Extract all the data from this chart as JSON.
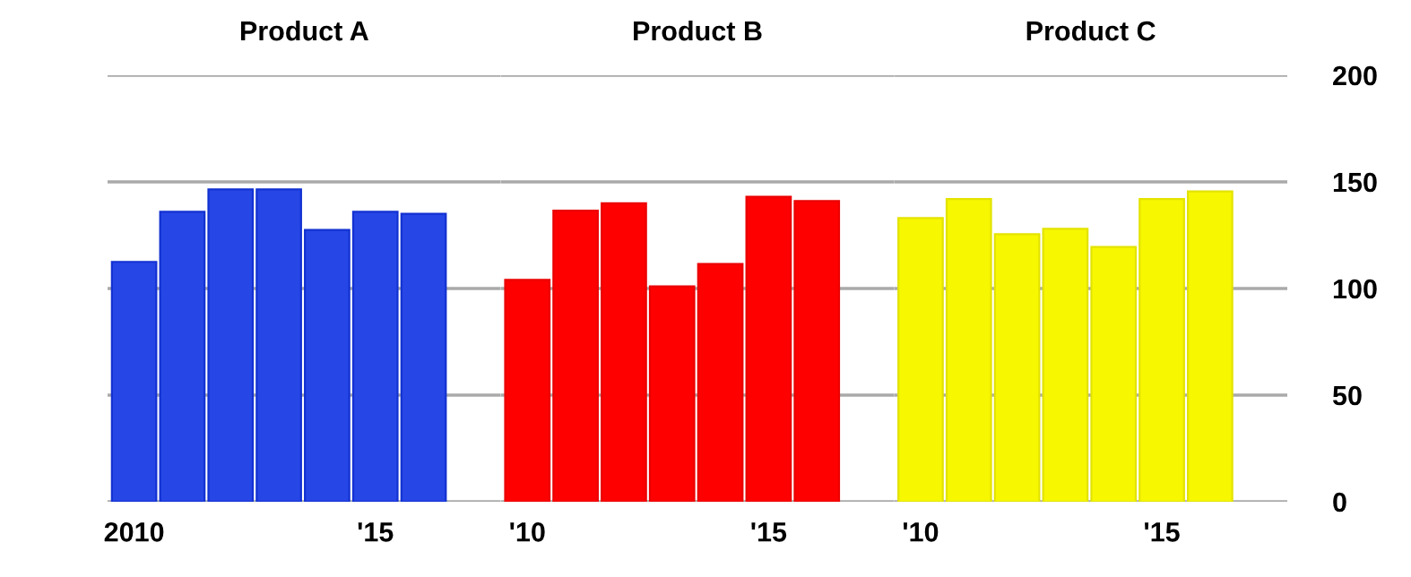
{
  "chart_data": [
    {
      "type": "bar",
      "title": "Product A",
      "categories": [
        "2010",
        null,
        null,
        null,
        null,
        "'15",
        null
      ],
      "values": [
        112.5,
        136,
        146.5,
        146.5,
        127.5,
        136,
        135
      ],
      "color": "#2746e6",
      "ylim": [
        0,
        200
      ],
      "yticks": [
        0,
        50,
        100,
        150,
        200
      ],
      "grid": "y",
      "tick_labels": "x"
    },
    {
      "type": "bar",
      "title": "Product B",
      "categories": [
        "'10",
        null,
        null,
        null,
        null,
        "'15",
        null
      ],
      "values": [
        104,
        136.5,
        140,
        101,
        111.5,
        143,
        141
      ],
      "color": "#ff0000",
      "ylim": [
        0,
        200
      ],
      "yticks": [
        0,
        50,
        100,
        150,
        200
      ],
      "grid": "y",
      "tick_labels": "x"
    },
    {
      "type": "bar",
      "title": "Product C",
      "categories": [
        "'10",
        null,
        null,
        null,
        null,
        "'15",
        null
      ],
      "values": [
        133,
        142,
        125.5,
        128,
        119.5,
        142,
        145.5
      ],
      "color": "#f7f700",
      "ylim": [
        0,
        200
      ],
      "yticks": [
        0,
        50,
        100,
        150,
        200
      ],
      "grid": "y"
    }
  ]
}
